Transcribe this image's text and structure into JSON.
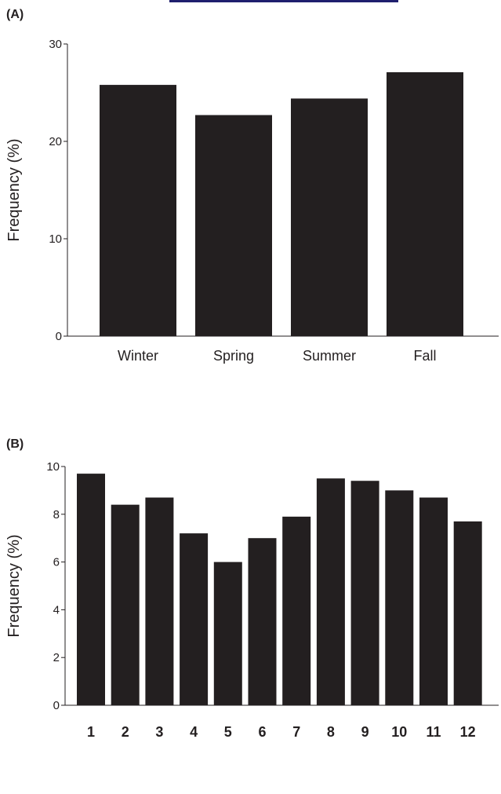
{
  "header_rule_color": "#1f1f6e",
  "chart_data": [
    {
      "panel_label": "(A)",
      "type": "bar",
      "title": "",
      "xlabel": "",
      "ylabel": "Frequency (%)",
      "categories": [
        "Winter",
        "Spring",
        "Summer",
        "Fall"
      ],
      "values": [
        25.8,
        22.7,
        24.4,
        27.1
      ],
      "ylim": [
        0,
        30
      ],
      "yticks": [
        0,
        10,
        20,
        30
      ],
      "bar_color": "#231f20",
      "grid": false,
      "legend": "none"
    },
    {
      "panel_label": "(B)",
      "type": "bar",
      "title": "",
      "xlabel": "",
      "ylabel": "Frequency (%)",
      "categories": [
        "1",
        "2",
        "3",
        "4",
        "5",
        "6",
        "7",
        "8",
        "9",
        "10",
        "11",
        "12"
      ],
      "values": [
        9.7,
        8.4,
        8.7,
        7.2,
        6.0,
        7.0,
        7.9,
        9.5,
        9.4,
        9.0,
        8.7,
        7.7
      ],
      "ylim": [
        0,
        10
      ],
      "yticks": [
        0,
        2,
        4,
        6,
        8,
        10
      ],
      "bar_color": "#231f20",
      "grid": false,
      "legend": "none"
    }
  ]
}
